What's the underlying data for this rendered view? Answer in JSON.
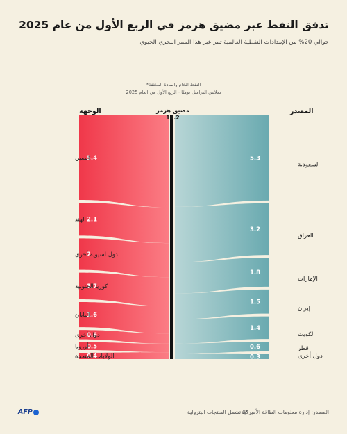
{
  "header": {
    "title": "تدفق النفط عبر مضيق هرمز في الربع الأول من عام 2025",
    "subtitle": "حوالي 20% من الإمدادات النفطية العالمية تمر عبر هذا الممر البحري الحيوي"
  },
  "footer": {
    "source": "المصدر: إدارة معلومات الطاقة الأميركية",
    "note": "*لا تشمل المنتجات البترولية",
    "logo": "AFP"
  },
  "colors": {
    "destination_dark": "#f0384a",
    "destination_light": "#fb7d85",
    "source_dark": "#6aaab0",
    "source_light": "#b8d6d6",
    "strait_bar": "#111111",
    "background": "#f5f0e1"
  },
  "chart_data": {
    "type": "sankey",
    "unit_note": "النفط الخام والمادة المكثفة*",
    "unit_line": "بملايين البراميل يوميًا - الربع الأول من العام 2025",
    "center_label": "مضيق هرمز",
    "total": 14.2,
    "destination_header": "الوجهة",
    "source_header": "المصدر",
    "destinations": [
      {
        "name": "الصين",
        "value": 5.4
      },
      {
        "name": "الهند",
        "value": 2.1
      },
      {
        "name": "دول آسيوية أخرى",
        "value": 2.0
      },
      {
        "name": "كوريا الجنوبية",
        "value": 1.7
      },
      {
        "name": "اليابان",
        "value": 1.6
      },
      {
        "name": "دول أخرى",
        "value": 0.6
      },
      {
        "name": "أوروبا",
        "value": 0.5
      },
      {
        "name": "الولايات المتحدة",
        "value": 0.4
      }
    ],
    "sources": [
      {
        "name": "السعودية",
        "value": 5.3
      },
      {
        "name": "العراق",
        "value": 3.2
      },
      {
        "name": "الإمارات",
        "value": 1.8
      },
      {
        "name": "إيران",
        "value": 1.5
      },
      {
        "name": "الكويت",
        "value": 1.4
      },
      {
        "name": "قطر",
        "value": 0.6
      },
      {
        "name": "دول أخرى",
        "value": 0.3
      }
    ]
  }
}
